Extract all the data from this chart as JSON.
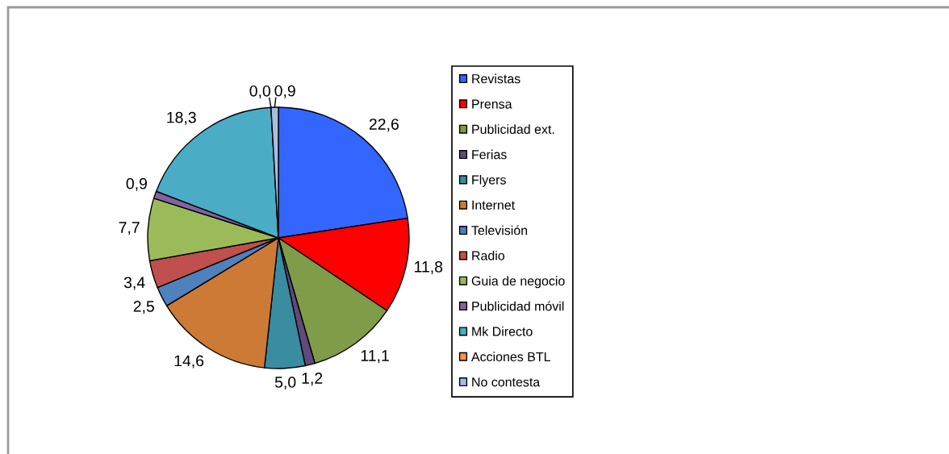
{
  "chart_data": {
    "type": "pie",
    "categories": [
      "Revistas",
      "Prensa",
      "Publicidad ext.",
      "Ferias",
      "Flyers",
      "Internet",
      "Televisión",
      "Radio",
      "Guia de negocio",
      "Publicidad móvil",
      "Mk Directo",
      "Acciones BTL",
      "No contesta"
    ],
    "values": [
      22.6,
      11.8,
      11.1,
      1.2,
      5.0,
      14.6,
      2.5,
      3.4,
      7.7,
      0.9,
      18.3,
      0.0,
      0.9
    ],
    "value_labels": [
      "22,6",
      "11,8",
      "11,1",
      "1,2",
      "5,0",
      "14,6",
      "2,5",
      "3,4",
      "7,7",
      "0,9",
      "18,3",
      "0,0",
      "0,9"
    ],
    "colors": [
      "#3366ff",
      "#ff0000",
      "#7f9c48",
      "#604a7b",
      "#3a8ca0",
      "#cc7a36",
      "#4f81bd",
      "#c0504d",
      "#9bbb59",
      "#8064a2",
      "#4bacc6",
      "#f79646",
      "#a9bde3"
    ],
    "legend": "right"
  }
}
